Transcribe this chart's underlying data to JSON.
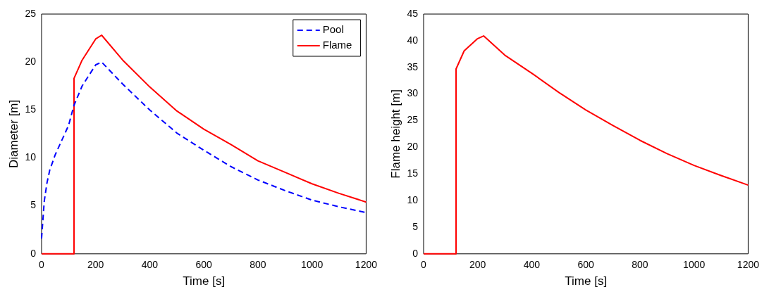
{
  "chart_data": [
    {
      "type": "line",
      "xlabel": "Time [s]",
      "ylabel": "Diameter [m]",
      "xlim": [
        0,
        1200
      ],
      "xticks": [
        0,
        200,
        400,
        600,
        800,
        1000,
        1200
      ],
      "ylim": [
        0,
        25
      ],
      "yticks": [
        0,
        5,
        10,
        15,
        20,
        25
      ],
      "grid": false,
      "legend": "top right",
      "series": [
        {
          "name": "Pool",
          "color": "#0000ff",
          "line_style": "dashed",
          "x": [
            0,
            10,
            20,
            30,
            50,
            100,
            120,
            150,
            200,
            222,
            300,
            400,
            500,
            600,
            700,
            800,
            900,
            1000,
            1100,
            1200
          ],
          "values": [
            1.6,
            5.5,
            7.4,
            8.7,
            10.3,
            13.4,
            15.5,
            17.5,
            19.7,
            20,
            17.7,
            15,
            12.6,
            10.8,
            9.1,
            7.7,
            6.6,
            5.6,
            4.9,
            4.3
          ]
        },
        {
          "name": "Flame",
          "color": "#ff0000",
          "line_style": "solid",
          "x": [
            0,
            120,
            120,
            150,
            200,
            222,
            300,
            400,
            500,
            600,
            700,
            800,
            900,
            1000,
            1100,
            1200
          ],
          "values": [
            0,
            0,
            18.3,
            20.2,
            22.4,
            22.8,
            20.2,
            17.4,
            14.9,
            13,
            11.4,
            9.7,
            8.5,
            7.3,
            6.3,
            5.4
          ]
        }
      ]
    },
    {
      "type": "line",
      "xlabel": "Time [s]",
      "ylabel": "Flame height [m]",
      "xlim": [
        0,
        1200
      ],
      "xticks": [
        0,
        200,
        400,
        600,
        800,
        1000,
        1200
      ],
      "ylim": [
        0,
        45
      ],
      "yticks": [
        0,
        5,
        10,
        15,
        20,
        25,
        30,
        35,
        40,
        45
      ],
      "grid": false,
      "legend": false,
      "series": [
        {
          "color": "#ff0000",
          "line_style": "solid",
          "x": [
            0,
            120,
            120,
            150,
            200,
            222,
            300,
            400,
            500,
            600,
            700,
            800,
            900,
            1000,
            1100,
            1200
          ],
          "values": [
            0,
            0,
            34.7,
            38.1,
            40.4,
            40.9,
            37.3,
            33.9,
            30.3,
            27,
            24.1,
            21.3,
            18.8,
            16.6,
            14.7,
            12.9
          ]
        }
      ]
    }
  ]
}
